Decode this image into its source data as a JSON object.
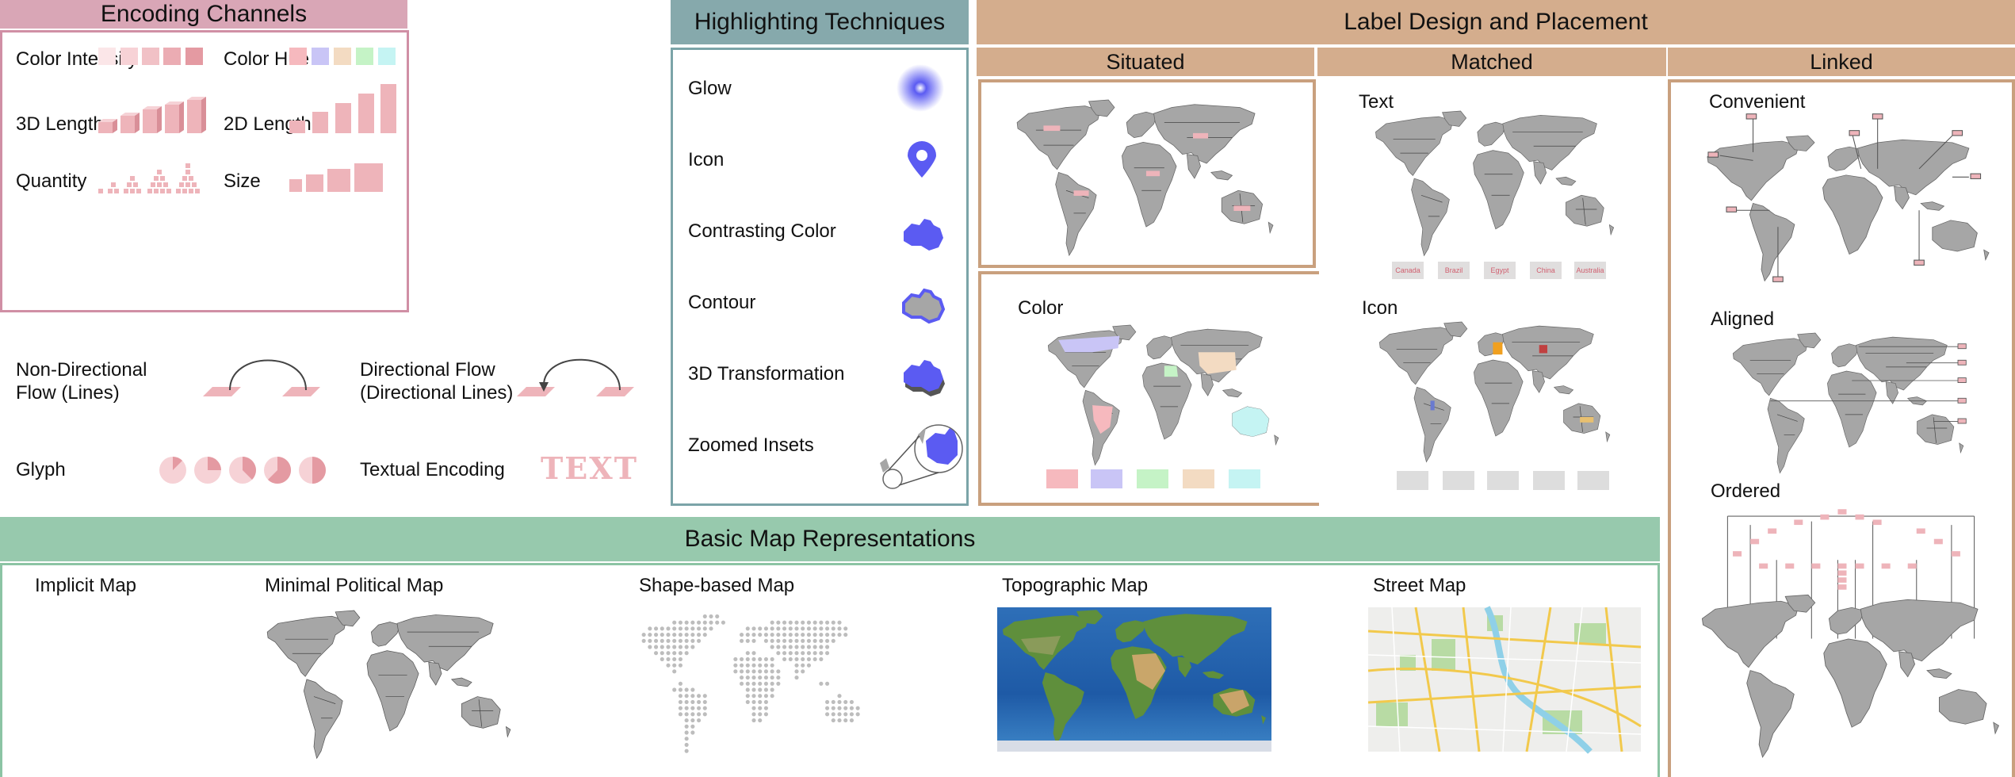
{
  "colors": {
    "encoding_header": "#d9a6b6",
    "encoding_border": "#d08fa5",
    "highlight_header": "#86a9ac",
    "highlight_border": "#7ba4a8",
    "label_header": "#d4ad8d",
    "label_border": "#c9a07e",
    "basic_header": "#97c9ad",
    "basic_border": "#8cc4a4",
    "pink_mark": "#eeb4ba",
    "glow_blue": "#5b5bf2",
    "map_gray": "#a6a6a6"
  },
  "encoding": {
    "title": "Encoding Channels",
    "color_intensity": "Color Intensity",
    "color_hue": "Color Hue",
    "length_3d": "3D Length",
    "length_2d": "2D Length",
    "quantity": "Quantity",
    "size": "Size",
    "nondir_flow_1": "Non-Directional",
    "nondir_flow_2": "Flow (Lines)",
    "dir_flow_1": "Directional Flow",
    "dir_flow_2": "(Directional Lines)",
    "glyph": "Glyph",
    "textual": "Textual Encoding",
    "text_sample": "TEXT"
  },
  "highlighting": {
    "title": "Highlighting Techniques",
    "glow": "Glow",
    "icon": "Icon",
    "contrasting": "Contrasting Color",
    "contour": "Contour",
    "transform_3d": "3D Transformation",
    "zoomed": "Zoomed Insets"
  },
  "label": {
    "title": "Label Design and Placement",
    "situated": "Situated",
    "matched": "Matched",
    "linked": "Linked",
    "color": "Color",
    "text": "Text",
    "icon": "Icon",
    "convenient": "Convenient",
    "aligned": "Aligned",
    "ordered": "Ordered",
    "country_tags": [
      "Canada",
      "Brazil",
      "Egypt",
      "China",
      "Australia"
    ]
  },
  "basic": {
    "title": "Basic Map Representations",
    "implicit": "Implicit Map",
    "minimal": "Minimal Political Map",
    "shape": "Shape-based Map",
    "topographic": "Topographic Map",
    "street": "Street Map"
  }
}
